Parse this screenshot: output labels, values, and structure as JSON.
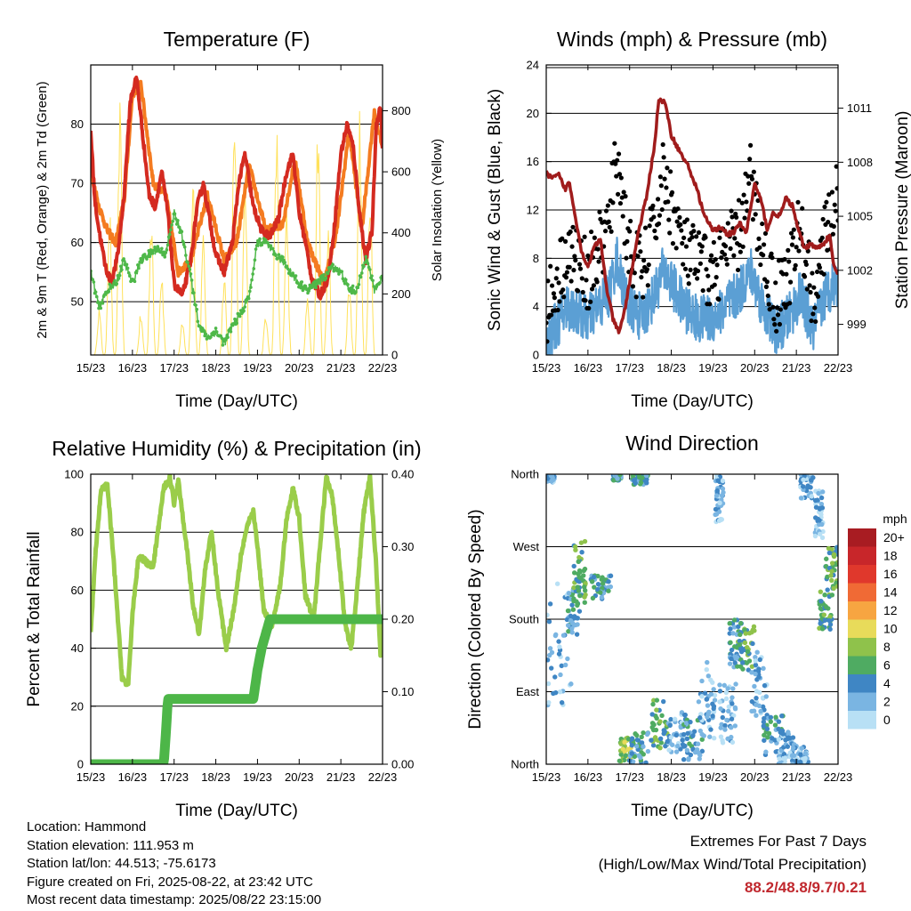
{
  "x_ticks": [
    "15/23",
    "16/23",
    "17/23",
    "18/23",
    "19/23",
    "20/23",
    "21/23",
    "22/23"
  ],
  "xlabel": "Time (Day/UTC)",
  "colors": {
    "t2m": "#d42a20",
    "t9m": "#f47b20",
    "td": "#4eb849",
    "solar": "#ffe15a",
    "gust": "#000000",
    "wind": "#5b9fd4",
    "pressure": "#a01c1c",
    "rh": "#9acd4a",
    "precip": "#4db648"
  },
  "chart_data": [
    {
      "type": "line",
      "title": "Temperature (F)",
      "xlabel": "Time (Day/UTC)",
      "ylabel": "2m & 9m T (Red, Orange) & 2m Td (Green)",
      "y2label": "Solar Insolation (Yellow)",
      "x_range": [
        0,
        7
      ],
      "ylim": [
        41,
        90
      ],
      "y_ticks": [
        50,
        60,
        70,
        80
      ],
      "y2lim": [
        0,
        950
      ],
      "y2_ticks": [
        0,
        200,
        400,
        600,
        800
      ],
      "grid": true,
      "series": [
        {
          "name": "2m T",
          "x": [
            0,
            0.1,
            0.2,
            0.35,
            0.5,
            0.65,
            0.8,
            0.95,
            1.1,
            1.25,
            1.4,
            1.55,
            1.7,
            1.85,
            2.0,
            2.2,
            2.4,
            2.55,
            2.7,
            2.85,
            3.0,
            3.2,
            3.4,
            3.55,
            3.7,
            3.9,
            4.1,
            4.3,
            4.5,
            4.7,
            4.85,
            5.0,
            5.15,
            5.3,
            5.5,
            5.7,
            5.85,
            6.0,
            6.15,
            6.3,
            6.45,
            6.6,
            6.75,
            6.85,
            6.95,
            7.0
          ],
          "values": [
            79,
            67,
            62,
            56,
            53,
            58,
            68,
            84,
            88,
            78,
            68,
            66,
            72,
            65,
            53,
            51,
            57,
            66,
            70,
            64,
            58,
            55,
            60,
            70,
            75,
            66,
            62,
            61,
            64,
            72,
            75,
            65,
            60,
            54,
            51,
            54,
            63,
            75,
            80,
            76,
            65,
            57,
            62,
            80,
            83,
            76
          ]
        },
        {
          "name": "9m T",
          "x": [
            0,
            0.2,
            0.4,
            0.6,
            0.8,
            1.0,
            1.2,
            1.5,
            1.8,
            2.1,
            2.4,
            2.8,
            3.2,
            3.5,
            3.8,
            4.2,
            4.6,
            4.9,
            5.2,
            5.6,
            5.9,
            6.2,
            6.5,
            6.8,
            7.0
          ],
          "values": [
            72,
            66,
            62,
            60,
            67,
            85,
            87,
            70,
            68,
            55,
            57,
            68,
            57,
            60,
            73,
            62,
            63,
            74,
            60,
            53,
            62,
            79,
            62,
            82,
            76
          ]
        },
        {
          "name": "2m Td",
          "x": [
            0,
            0.2,
            0.4,
            0.6,
            0.8,
            1.0,
            1.2,
            1.4,
            1.6,
            1.8,
            2.0,
            2.2,
            2.4,
            2.6,
            2.8,
            3.0,
            3.2,
            3.4,
            3.6,
            3.8,
            4.0,
            4.2,
            4.4,
            4.6,
            4.8,
            5.0,
            5.2,
            5.4,
            5.6,
            5.8,
            6.0,
            6.2,
            6.4,
            6.6,
            6.8,
            7.0
          ],
          "values": [
            55,
            49,
            52,
            53,
            57,
            53,
            57,
            58,
            59,
            58,
            65,
            61,
            54,
            46,
            44,
            45,
            43,
            46,
            48,
            51,
            60,
            60,
            58,
            57,
            55,
            53,
            52,
            53,
            54,
            56,
            55,
            52,
            52,
            58,
            52,
            54
          ]
        },
        {
          "name": "Solar Insolation",
          "axis": "y2",
          "x": [
            0.2,
            0.45,
            0.7,
            1.2,
            1.45,
            1.7,
            2.2,
            2.45,
            2.7,
            3.2,
            3.45,
            3.7,
            4.2,
            4.45,
            4.7,
            5.2,
            5.45,
            5.7,
            6.2,
            6.45,
            6.7
          ],
          "peaks": [
            160,
            520,
            830,
            140,
            480,
            300,
            110,
            650,
            400,
            280,
            880,
            600,
            150,
            800,
            500,
            200,
            830,
            420,
            260,
            810,
            640
          ]
        }
      ]
    },
    {
      "type": "scatter",
      "title": "Winds (mph) & Pressure (mb)",
      "xlabel": "Time (Day/UTC)",
      "ylabel": "Sonic Wind & Gust (Blue, Black)",
      "y2label": "Station Pressure (Maroon)",
      "x_range": [
        0,
        7
      ],
      "ylim": [
        0,
        24
      ],
      "y_ticks": [
        0,
        4,
        8,
        12,
        16,
        20,
        24
      ],
      "y2lim": [
        997.3,
        1013.4
      ],
      "y2_ticks": [
        999,
        1002,
        1005,
        1008,
        1011
      ],
      "grid": true,
      "series": [
        {
          "name": "Gust",
          "x": [
            0,
            0.5,
            1.0,
            1.5,
            1.7,
            1.8,
            2.0,
            2.3,
            2.6,
            2.8,
            3.0,
            3.3,
            3.6,
            4.0,
            4.3,
            4.6,
            4.9,
            5.2,
            5.5,
            5.8,
            6.1,
            6.4,
            6.7,
            6.9
          ],
          "values": [
            3,
            8,
            6,
            10,
            16,
            13,
            8,
            6,
            10,
            14,
            12,
            8,
            7,
            6,
            8,
            9,
            14,
            8,
            4,
            6,
            10,
            4,
            9,
            12
          ]
        },
        {
          "name": "Sonic Wind",
          "x": [
            0,
            0.5,
            1.0,
            1.5,
            1.7,
            1.8,
            2.0,
            2.3,
            2.6,
            2.8,
            3.0,
            3.3,
            3.6,
            4.0,
            4.3,
            4.6,
            4.9,
            5.2,
            5.5,
            5.8,
            6.1,
            6.4,
            6.7,
            6.9
          ],
          "values": [
            1,
            4,
            3,
            5,
            8,
            6,
            4,
            3,
            5,
            7,
            6,
            4,
            3,
            3,
            4,
            5,
            7,
            4,
            2,
            3,
            5,
            2,
            5,
            6
          ]
        },
        {
          "name": "Station Pressure",
          "axis": "y2",
          "x": [
            0,
            0.15,
            0.3,
            0.45,
            0.55,
            0.7,
            0.85,
            1.0,
            1.15,
            1.3,
            1.45,
            1.6,
            1.75,
            1.9,
            2.05,
            2.2,
            2.4,
            2.6,
            2.7,
            2.85,
            3.0,
            3.2,
            3.4,
            3.6,
            3.8,
            4.0,
            4.2,
            4.35,
            4.5,
            4.65,
            4.8,
            5.0,
            5.15,
            5.3,
            5.45,
            5.6,
            5.75,
            5.9,
            6.05,
            6.2,
            6.35,
            6.5,
            6.65,
            6.8,
            6.9,
            7.0
          ],
          "values": [
            1007.4,
            1007.1,
            1007.3,
            1006.5,
            1006.9,
            1005.0,
            1003.0,
            1002.2,
            1003.3,
            1003.7,
            1001.0,
            999.3,
            998.5,
            1000.0,
            1002.0,
            1004.0,
            1006.0,
            1009.0,
            1011.5,
            1011.3,
            1009.5,
            1008.6,
            1007.8,
            1006.6,
            1005.0,
            1004.2,
            1004.4,
            1004.0,
            1004.1,
            1004.6,
            1004.1,
            1006.8,
            1005.9,
            1004.3,
            1005.2,
            1005.0,
            1006.0,
            1005.6,
            1004.2,
            1003.2,
            1003.5,
            1003.2,
            1003.5,
            1003.9,
            1002.2,
            1001.8
          ]
        }
      ]
    },
    {
      "type": "line",
      "title": "Relative Humidity (%) & Precipitation (in)",
      "xlabel": "Time (Day/UTC)",
      "ylabel": "Percent & Total Rainfall",
      "x_range": [
        0,
        7
      ],
      "ylim": [
        0,
        100
      ],
      "y_ticks": [
        0,
        20,
        40,
        60,
        80,
        100
      ],
      "y2lim": [
        0,
        0.4
      ],
      "y2_ticks": [
        "0.00",
        "0.10",
        "0.20",
        "0.30",
        "0.40"
      ],
      "grid": true,
      "series": [
        {
          "name": "RH",
          "x": [
            0,
            0.1,
            0.25,
            0.4,
            0.55,
            0.75,
            0.9,
            1.0,
            1.15,
            1.3,
            1.5,
            1.6,
            1.75,
            1.9,
            2.0,
            2.1,
            2.3,
            2.45,
            2.6,
            2.75,
            2.9,
            3.05,
            3.25,
            3.45,
            3.6,
            3.75,
            3.9,
            4.0,
            4.15,
            4.35,
            4.55,
            4.7,
            4.85,
            5.0,
            5.15,
            5.35,
            5.5,
            5.65,
            5.8,
            5.95,
            6.1,
            6.25,
            6.4,
            6.55,
            6.7,
            6.85,
            6.95,
            7.0
          ],
          "values": [
            45,
            70,
            95,
            96,
            70,
            30,
            27,
            52,
            72,
            70,
            68,
            79,
            95,
            99,
            90,
            98,
            75,
            55,
            45,
            68,
            80,
            60,
            40,
            55,
            72,
            82,
            87,
            75,
            53,
            48,
            62,
            85,
            95,
            85,
            58,
            50,
            75,
            99,
            92,
            72,
            48,
            40,
            62,
            87,
            99,
            68,
            38,
            50
          ]
        },
        {
          "name": "Total Precipitation",
          "axis": "y2",
          "x": [
            0,
            1.75,
            1.8,
            1.85,
            3.9,
            4.0,
            4.1,
            4.2,
            4.3,
            7.0
          ],
          "values": [
            0,
            0,
            0.04,
            0.09,
            0.09,
            0.13,
            0.16,
            0.18,
            0.2,
            0.2
          ]
        }
      ]
    },
    {
      "type": "scatter",
      "title": "Wind Direction",
      "xlabel": "Time (Day/UTC)",
      "ylabel": "Direction (Colored By Speed)",
      "x_range": [
        0,
        7
      ],
      "ylim": [
        0,
        360
      ],
      "y_tick_labels": [
        "North",
        "East",
        "South",
        "West",
        "North"
      ],
      "y_ticks": [
        0,
        90,
        180,
        270,
        360
      ],
      "grid": true,
      "colorbar": {
        "title": "mph",
        "labels": [
          "20+",
          "18",
          "16",
          "14",
          "12",
          "10",
          "8",
          "6",
          "4",
          "2",
          "0"
        ],
        "colors": [
          "#a81c22",
          "#c8262a",
          "#e0382c",
          "#f06a35",
          "#f7a541",
          "#e8db5a",
          "#8fc24b",
          "#4fab62",
          "#3f86c4",
          "#7ab5e2",
          "#b8e0f5"
        ]
      },
      "clusters": [
        {
          "x": 0.1,
          "y": 360,
          "dx": 0.1,
          "dy": 10,
          "speed": 2
        },
        {
          "x": 0.3,
          "y": 150,
          "dx": 0.3,
          "dy": 80,
          "speed": 2
        },
        {
          "x": 0.65,
          "y": 190,
          "dx": 0.15,
          "dy": 30,
          "speed": 4
        },
        {
          "x": 0.8,
          "y": 240,
          "dx": 0.15,
          "dy": 40,
          "speed": 6
        },
        {
          "x": 1.3,
          "y": 220,
          "dx": 0.25,
          "dy": 15,
          "speed": 4
        },
        {
          "x": 1.7,
          "y": 360,
          "dx": 0.1,
          "dy": 8,
          "speed": 4
        },
        {
          "x": 1.9,
          "y": 18,
          "dx": 0.15,
          "dy": 15,
          "speed": 8
        },
        {
          "x": 2.25,
          "y": 355,
          "dx": 0.2,
          "dy": 8,
          "speed": 4
        },
        {
          "x": 2.2,
          "y": 20,
          "dx": 0.25,
          "dy": 20,
          "speed": 4
        },
        {
          "x": 2.7,
          "y": 50,
          "dx": 0.2,
          "dy": 30,
          "speed": 6
        },
        {
          "x": 3.1,
          "y": 40,
          "dx": 0.25,
          "dy": 25,
          "speed": 2
        },
        {
          "x": 3.5,
          "y": 30,
          "dx": 0.25,
          "dy": 25,
          "speed": 4
        },
        {
          "x": 3.85,
          "y": 80,
          "dx": 0.2,
          "dy": 50,
          "speed": 2
        },
        {
          "x": 4.35,
          "y": 60,
          "dx": 0.2,
          "dy": 40,
          "speed": 2
        },
        {
          "x": 4.55,
          "y": 150,
          "dx": 0.15,
          "dy": 30,
          "speed": 4
        },
        {
          "x": 4.8,
          "y": 145,
          "dx": 0.2,
          "dy": 30,
          "speed": 6
        },
        {
          "x": 4.15,
          "y": 330,
          "dx": 0.1,
          "dy": 30,
          "speed": 2
        },
        {
          "x": 5.1,
          "y": 100,
          "dx": 0.2,
          "dy": 40,
          "speed": 2
        },
        {
          "x": 5.45,
          "y": 35,
          "dx": 0.25,
          "dy": 25,
          "speed": 4
        },
        {
          "x": 5.75,
          "y": 20,
          "dx": 0.2,
          "dy": 20,
          "speed": 2
        },
        {
          "x": 6.1,
          "y": 10,
          "dx": 0.2,
          "dy": 15,
          "speed": 2
        },
        {
          "x": 6.25,
          "y": 350,
          "dx": 0.15,
          "dy": 20,
          "speed": 2
        },
        {
          "x": 6.7,
          "y": 190,
          "dx": 0.15,
          "dy": 25,
          "speed": 6
        },
        {
          "x": 6.85,
          "y": 240,
          "dx": 0.15,
          "dy": 30,
          "speed": 6
        },
        {
          "x": 6.55,
          "y": 310,
          "dx": 0.1,
          "dy": 30,
          "speed": 2
        }
      ]
    }
  ],
  "info": {
    "location": "Location: Hammond",
    "elevation": "Station elevation: 111.953 m",
    "latlon": "Station lat/lon: 44.513; -75.6173",
    "created": "Figure created on Fri, 2025-08-22, at 23:42 UTC",
    "timestamp": "Most recent data timestamp: 2025/08/22 23:15:00"
  },
  "extremes": {
    "title": "Extremes For Past 7 Days",
    "subtitle": "(High/Low/Max Wind/Total Precipitation)",
    "values": "88.2/48.8/9.7/0.21"
  }
}
